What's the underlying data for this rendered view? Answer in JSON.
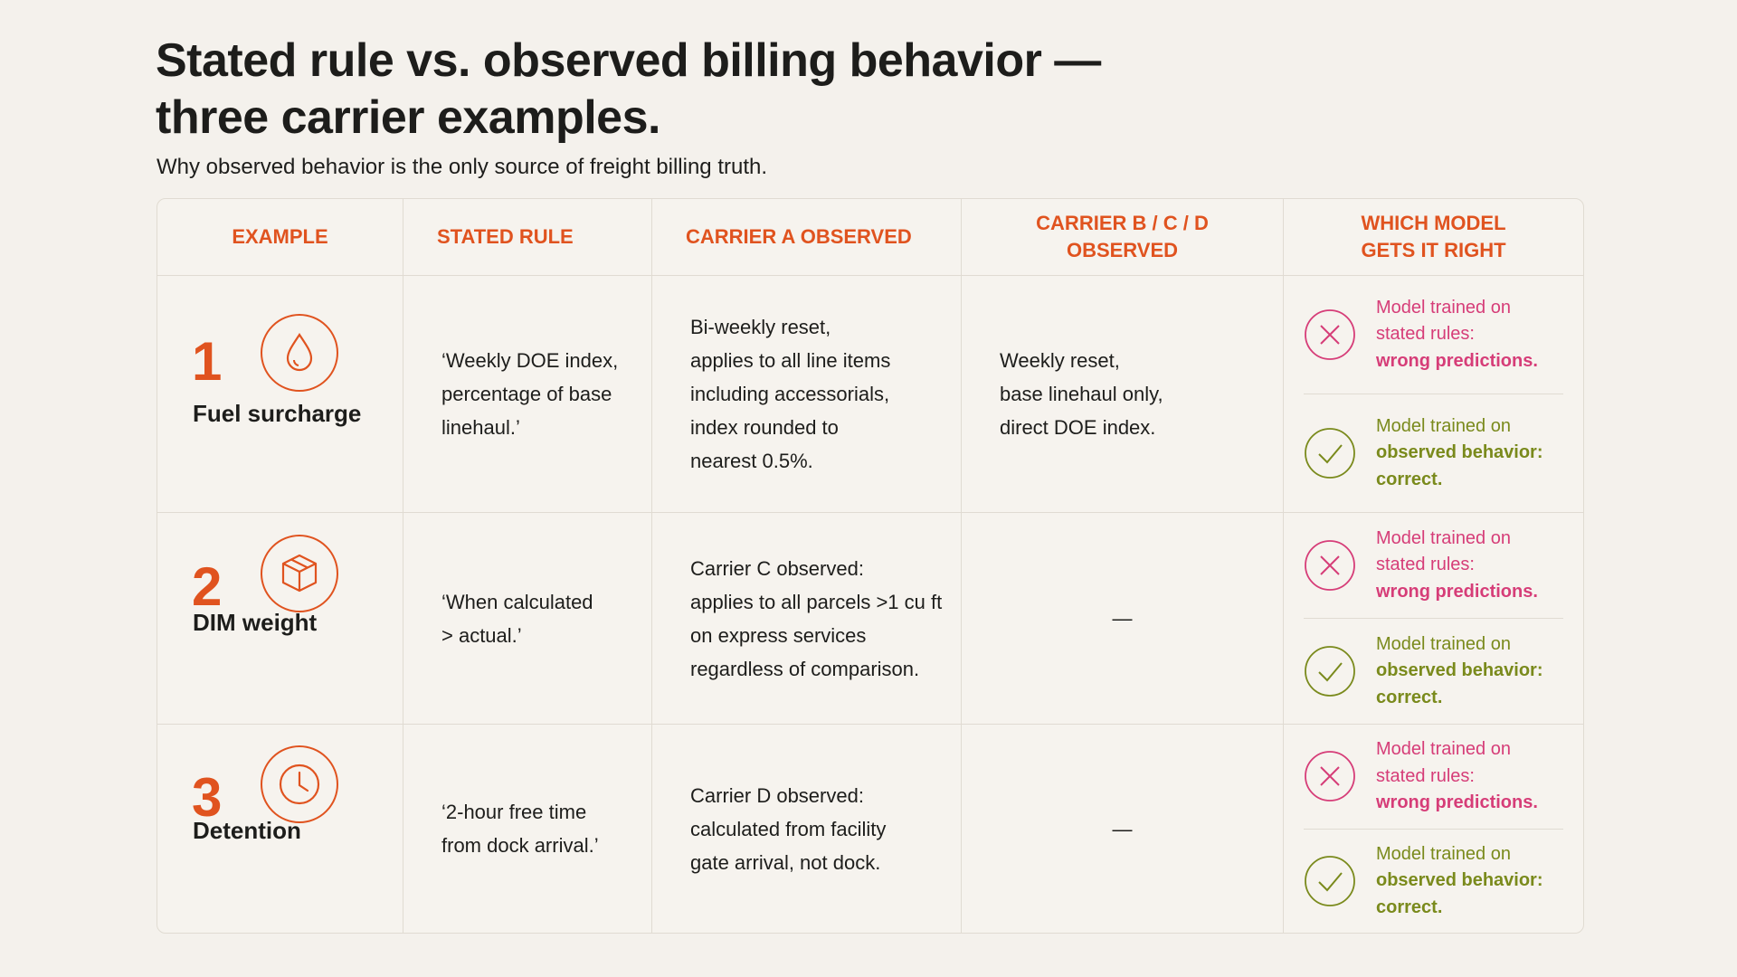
{
  "header": {
    "title_lines": [
      "Stated rule vs. observed billing behavior —",
      "three carrier examples."
    ],
    "subtitle": "Why observed behavior is the only source of freight billing truth."
  },
  "table": {
    "columns": [
      "EXAMPLE",
      "STATED RULE",
      "CARRIER A OBSERVED",
      "CARRIER B / C / D OBSERVED",
      "WHICH MODEL GETS IT RIGHT"
    ],
    "rows": [
      {
        "number": "1",
        "label": "Fuel surcharge",
        "stated_rule": [
          "‘Weekly DOE index,",
          "percentage of base",
          "linehaul.’"
        ],
        "carrier_a": [
          "Bi-weekly reset,",
          "applies to all line items",
          "including accessorials,",
          "index rounded to",
          "nearest 0.5%."
        ],
        "carrier_bcd": [
          "Weekly reset,",
          "base linehaul only,",
          "direct DOE index."
        ],
        "wrong": {
          "text": [
            "Model trained on",
            "stated rules:"
          ],
          "emphasis": "wrong predictions."
        },
        "right": {
          "text": [
            "Model trained on"
          ],
          "emphasis": "observed behavior: correct."
        }
      },
      {
        "number": "2",
        "label": "DIM weight",
        "stated_rule": [
          "‘When calculated",
          "> actual.’"
        ],
        "carrier_a": [
          "Carrier C observed:",
          "applies to all parcels >1 cu ft",
          "on express services",
          "regardless of comparison."
        ],
        "carrier_bcd": [
          "—"
        ],
        "wrong": {
          "text": [
            "Model trained on",
            "stated rules:"
          ],
          "emphasis": "wrong predictions."
        },
        "right": {
          "text": [
            "Model trained on"
          ],
          "emphasis": "observed behavior: correct."
        }
      },
      {
        "number": "3",
        "label": "Detention",
        "stated_rule": [
          "‘2-hour free time",
          "from dock arrival.’"
        ],
        "carrier_a": [
          "Carrier D observed:",
          "calculated from facility",
          "gate arrival, not dock."
        ],
        "carrier_bcd": [
          "—"
        ],
        "wrong": {
          "text": [
            "Model trained on",
            "stated rules:"
          ],
          "emphasis": "wrong predictions."
        },
        "right": {
          "text": [
            "Model trained on"
          ],
          "emphasis": "observed behavior: correct."
        }
      }
    ]
  }
}
